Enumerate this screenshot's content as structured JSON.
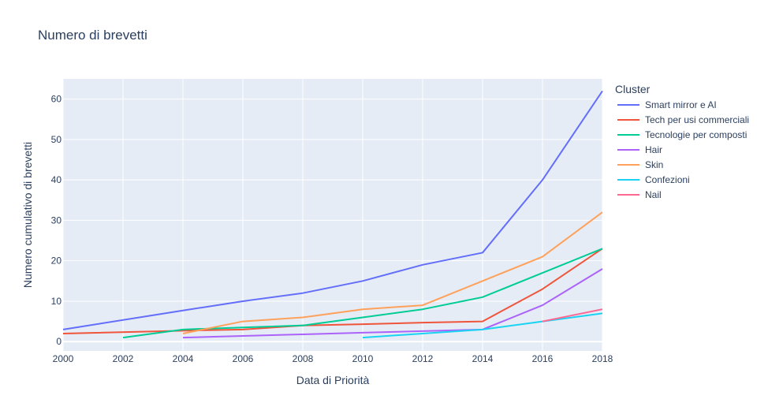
{
  "chart_data": {
    "type": "line",
    "title": "Numero di brevetti",
    "xlabel": "Data di Priorità",
    "ylabel": "Numero cumulativo di brevetti",
    "xlim": [
      2000,
      2018
    ],
    "ylim": [
      -2.3,
      65
    ],
    "x_ticks": [
      "2000",
      "2002",
      "2004",
      "2006",
      "2008",
      "2010",
      "2012",
      "2014",
      "2016",
      "2018"
    ],
    "y_ticks": [
      "0",
      "10",
      "20",
      "30",
      "40",
      "50",
      "60"
    ],
    "grid": true,
    "legend_title": "Cluster",
    "legend_position": "right",
    "series": [
      {
        "name": "Smart mirror e AI",
        "color": "#636efa",
        "x": [
          2000,
          2004,
          2006,
          2008,
          2010,
          2012,
          2014,
          2016,
          2018
        ],
        "y": [
          3,
          7.7,
          10,
          12,
          15,
          19,
          22,
          40,
          62
        ]
      },
      {
        "name": "Tech per usi commerciali",
        "color": "#ef553b",
        "x": [
          2000,
          2004,
          2006,
          2008,
          2010,
          2012,
          2014,
          2016,
          2018
        ],
        "y": [
          2,
          2.7,
          3,
          4,
          4.3,
          4.7,
          5,
          13,
          23
        ]
      },
      {
        "name": "Tecnologie per composti",
        "color": "#00cc96",
        "x": [
          2002,
          2004,
          2006,
          2008,
          2010,
          2012,
          2014,
          2016,
          2018
        ],
        "y": [
          1,
          3,
          3.5,
          4,
          6,
          8,
          11,
          17,
          23
        ]
      },
      {
        "name": "Hair",
        "color": "#ab63fa",
        "x": [
          2004,
          2006,
          2008,
          2010,
          2012,
          2014,
          2016,
          2018
        ],
        "y": [
          1,
          1.4,
          1.8,
          2.2,
          2.6,
          3,
          9,
          18
        ]
      },
      {
        "name": "Skin",
        "color": "#ffa15a",
        "x": [
          2004,
          2006,
          2008,
          2010,
          2012,
          2014,
          2016,
          2018
        ],
        "y": [
          2,
          5,
          6,
          8,
          9,
          15,
          21,
          32
        ]
      },
      {
        "name": "Confezioni",
        "color": "#19d3f3",
        "x": [
          2010,
          2012,
          2014,
          2016,
          2018
        ],
        "y": [
          1,
          2,
          3,
          5,
          7
        ]
      },
      {
        "name": "Nail",
        "color": "#ff6692",
        "x": [
          2016,
          2018
        ],
        "y": [
          5,
          8
        ]
      }
    ]
  }
}
